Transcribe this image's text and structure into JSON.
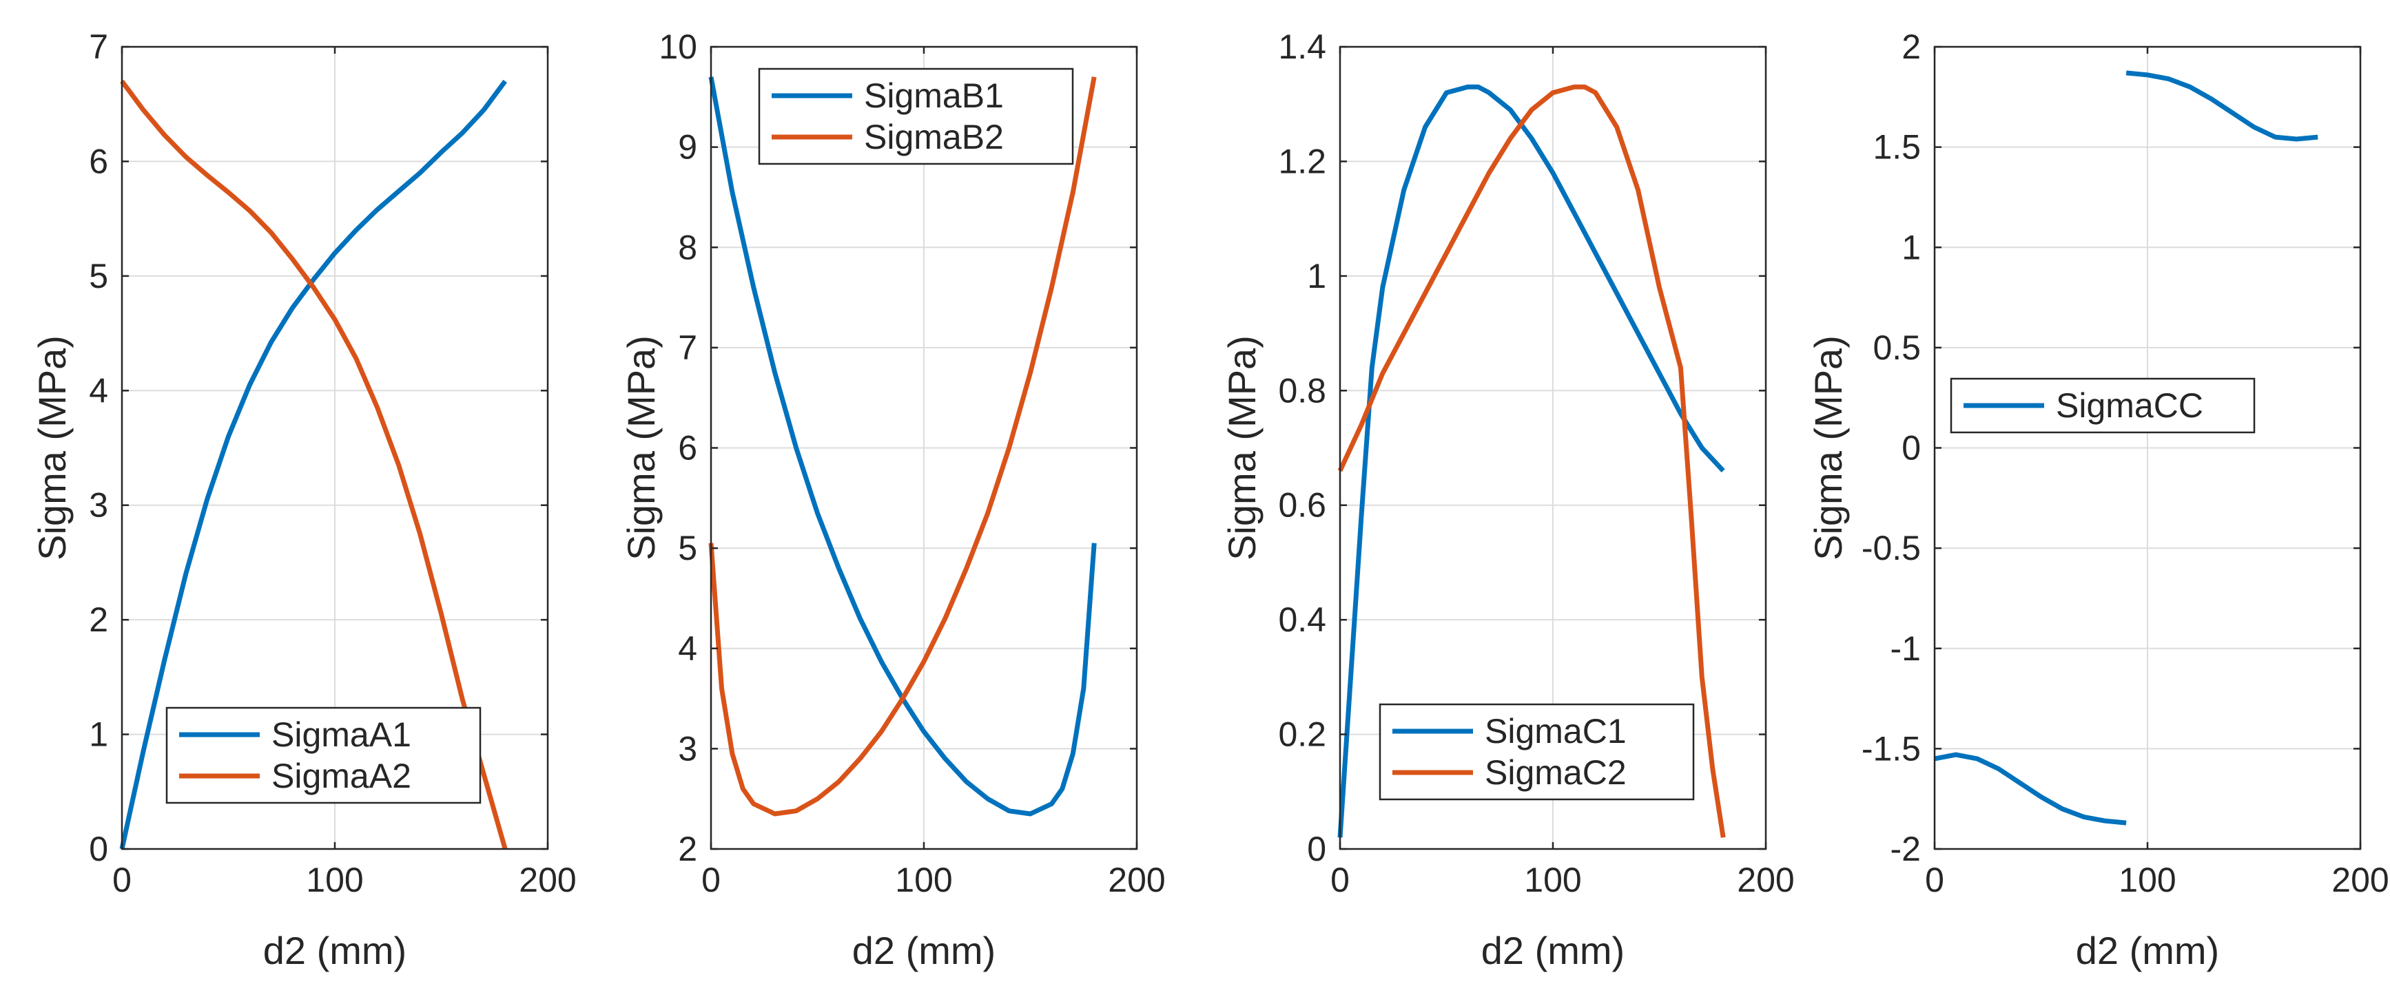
{
  "colors": {
    "blue": "#0072BD",
    "orange": "#D95319",
    "grid": "#dcdcdc",
    "axis": "#262626"
  },
  "chart_data": [
    {
      "type": "line",
      "xlabel": "d2 (mm)",
      "ylabel": "Sigma (MPa)",
      "xlim": [
        0,
        200
      ],
      "ylim": [
        0,
        7
      ],
      "xticks": [
        "0",
        "100",
        "200"
      ],
      "yticks": [
        "0",
        "1",
        "2",
        "3",
        "4",
        "5",
        "6",
        "7"
      ],
      "grid": true,
      "legend_position": "bottom-right",
      "series": [
        {
          "name": "SigmaA1",
          "color": "#0072BD",
          "x": [
            0,
            10,
            20,
            30,
            40,
            50,
            60,
            70,
            80,
            90,
            100,
            110,
            120,
            130,
            140,
            150,
            160,
            170,
            180
          ],
          "y": [
            0,
            0.85,
            1.65,
            2.4,
            3.05,
            3.6,
            4.05,
            4.42,
            4.72,
            4.97,
            5.2,
            5.4,
            5.58,
            5.74,
            5.9,
            6.08,
            6.25,
            6.45,
            6.7
          ]
        },
        {
          "name": "SigmaA2",
          "color": "#D95319",
          "x": [
            0,
            10,
            20,
            30,
            40,
            50,
            60,
            70,
            80,
            90,
            100,
            110,
            120,
            130,
            140,
            150,
            160,
            170,
            180
          ],
          "y": [
            6.7,
            6.45,
            6.23,
            6.04,
            5.88,
            5.73,
            5.57,
            5.38,
            5.15,
            4.9,
            4.62,
            4.28,
            3.85,
            3.35,
            2.75,
            2.05,
            1.3,
            0.65,
            0
          ]
        }
      ]
    },
    {
      "type": "line",
      "xlabel": "d2 (mm)",
      "ylabel": "Sigma (MPa)",
      "xlim": [
        0,
        200
      ],
      "ylim": [
        2,
        10
      ],
      "xticks": [
        "0",
        "100",
        "200"
      ],
      "yticks": [
        "2",
        "3",
        "4",
        "5",
        "6",
        "7",
        "8",
        "9",
        "10"
      ],
      "grid": true,
      "legend_position": "top-left",
      "series": [
        {
          "name": "SigmaB1",
          "color": "#0072BD",
          "x": [
            0,
            10,
            20,
            30,
            40,
            50,
            60,
            70,
            80,
            90,
            100,
            110,
            120,
            130,
            140,
            150,
            160,
            165,
            170,
            175,
            180
          ],
          "y": [
            9.7,
            8.55,
            7.6,
            6.75,
            6.0,
            5.35,
            4.8,
            4.3,
            3.87,
            3.5,
            3.17,
            2.9,
            2.67,
            2.5,
            2.38,
            2.35,
            2.45,
            2.6,
            2.95,
            3.6,
            5.05
          ]
        },
        {
          "name": "SigmaB2",
          "color": "#D95319",
          "x": [
            0,
            5,
            10,
            15,
            20,
            30,
            40,
            50,
            60,
            70,
            80,
            90,
            100,
            110,
            120,
            130,
            140,
            150,
            160,
            170,
            180
          ],
          "y": [
            5.05,
            3.6,
            2.95,
            2.6,
            2.45,
            2.35,
            2.38,
            2.5,
            2.67,
            2.9,
            3.17,
            3.5,
            3.87,
            4.3,
            4.8,
            5.35,
            6.0,
            6.75,
            7.6,
            8.55,
            9.7
          ]
        }
      ]
    },
    {
      "type": "line",
      "xlabel": "d2 (mm)",
      "ylabel": "Sigma (MPa)",
      "xlim": [
        0,
        200
      ],
      "ylim": [
        0,
        1.4
      ],
      "xticks": [
        "0",
        "100",
        "200"
      ],
      "yticks": [
        "0",
        "0.2",
        "0.4",
        "0.6",
        "0.8",
        "1",
        "1.2",
        "1.4"
      ],
      "grid": true,
      "legend_position": "bottom-right",
      "series": [
        {
          "name": "SigmaC1",
          "color": "#0072BD",
          "x": [
            0,
            5,
            10,
            15,
            20,
            30,
            40,
            50,
            60,
            65,
            70,
            80,
            90,
            100,
            110,
            120,
            130,
            140,
            150,
            160,
            170,
            180
          ],
          "y": [
            0.02,
            0.3,
            0.58,
            0.84,
            0.98,
            1.15,
            1.26,
            1.32,
            1.33,
            1.33,
            1.32,
            1.29,
            1.24,
            1.18,
            1.11,
            1.04,
            0.97,
            0.9,
            0.83,
            0.76,
            0.7,
            0.66
          ]
        },
        {
          "name": "SigmaC2",
          "color": "#D95319",
          "x": [
            0,
            10,
            20,
            30,
            40,
            50,
            60,
            70,
            80,
            90,
            100,
            110,
            115,
            120,
            130,
            140,
            150,
            160,
            165,
            170,
            175,
            180
          ],
          "y": [
            0.66,
            0.74,
            0.83,
            0.9,
            0.97,
            1.04,
            1.11,
            1.18,
            1.24,
            1.29,
            1.32,
            1.33,
            1.33,
            1.32,
            1.26,
            1.15,
            0.98,
            0.84,
            0.58,
            0.3,
            0.14,
            0.02
          ]
        }
      ]
    },
    {
      "type": "line",
      "xlabel": "d2 (mm)",
      "ylabel": "Sigma (MPa)",
      "xlim": [
        0,
        200
      ],
      "ylim": [
        -2,
        2
      ],
      "xticks": [
        "0",
        "100",
        "200"
      ],
      "yticks": [
        "-2",
        "-1.5",
        "-1",
        "-0.5",
        "0",
        "0.5",
        "1",
        "1.5",
        "2"
      ],
      "grid": true,
      "legend_position": "middle-left",
      "series": [
        {
          "name": "SigmaCC",
          "color": "#0072BD",
          "x": [
            0,
            10,
            20,
            30,
            40,
            50,
            60,
            70,
            80,
            90,
            null,
            90,
            100,
            110,
            120,
            130,
            140,
            150,
            160,
            170,
            180
          ],
          "y": [
            -1.55,
            -1.53,
            -1.55,
            -1.6,
            -1.67,
            -1.74,
            -1.8,
            -1.84,
            -1.86,
            -1.87,
            null,
            1.87,
            1.86,
            1.84,
            1.8,
            1.74,
            1.67,
            1.6,
            1.55,
            1.54,
            1.55
          ]
        }
      ]
    }
  ]
}
